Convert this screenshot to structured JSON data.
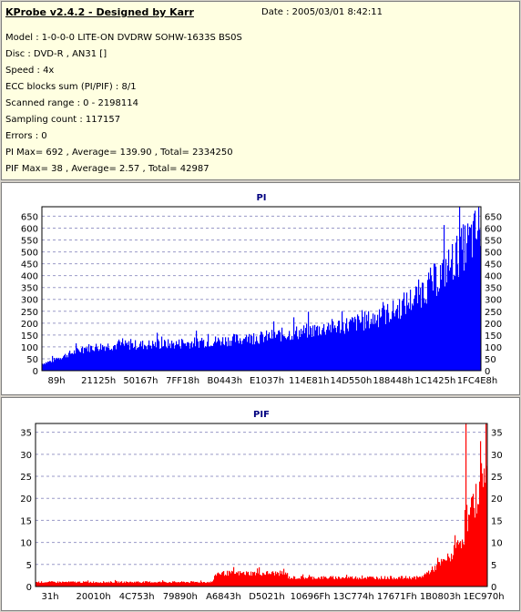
{
  "info": {
    "title": "KProbe v2.4.2 - Designed by Karr",
    "date": "Date : 2005/03/01 8:42:11",
    "lines": [
      "Model : 1-0-0-0 LITE-ON DVDRW SOHW-1633S BS0S",
      "Disc : DVD-R , AN31 []",
      "Speed : 4x",
      "ECC blocks sum (PI/PIF) : 8/1",
      "Scanned range : 0 - 2198114",
      "Sampling count : 117157",
      "Errors : 0",
      "PI Max= 692 , Average= 139.90 , Total= 2334250",
      "PIF Max= 38 , Average= 2.57 , Total= 42987"
    ]
  },
  "colors": {
    "pi": "#0000ff",
    "pif": "#ff0000",
    "title": "#000080",
    "info_bg": "#ffffe1"
  },
  "chart_data": [
    {
      "type": "area",
      "title": "PI",
      "ylim": [
        0,
        690
      ],
      "yticks": [
        0,
        50,
        100,
        150,
        200,
        250,
        300,
        350,
        400,
        450,
        500,
        550,
        600,
        650
      ],
      "xticks": [
        "89h",
        "21125h",
        "50167h",
        "7FF18h",
        "B0443h",
        "E1037h",
        "114E81h",
        "14D550h",
        "188448h",
        "1C1425h",
        "1FC4E8h"
      ],
      "grid": true,
      "profile": [
        [
          0,
          30
        ],
        [
          0.02,
          40
        ],
        [
          0.06,
          70
        ],
        [
          0.1,
          95
        ],
        [
          0.15,
          105
        ],
        [
          0.2,
          108
        ],
        [
          0.3,
          112
        ],
        [
          0.4,
          125
        ],
        [
          0.5,
          140
        ],
        [
          0.6,
          165
        ],
        [
          0.7,
          195
        ],
        [
          0.75,
          215
        ],
        [
          0.8,
          250
        ],
        [
          0.85,
          310
        ],
        [
          0.9,
          390
        ],
        [
          0.93,
          450
        ],
        [
          0.96,
          520
        ],
        [
          0.98,
          560
        ],
        [
          1.0,
          610
        ]
      ],
      "max": 692,
      "average": 139.9
    },
    {
      "type": "area",
      "title": "PIF",
      "ylim": [
        0,
        37
      ],
      "yticks": [
        0,
        5,
        10,
        15,
        20,
        25,
        30,
        35
      ],
      "xticks": [
        "31h",
        "20010h",
        "4C753h",
        "79890h",
        "A6843h",
        "D5021h",
        "10696Fh",
        "13C774h",
        "17671Fh",
        "1B0803h",
        "1EC970h"
      ],
      "grid": true,
      "profile": [
        [
          0,
          1
        ],
        [
          0.39,
          1
        ],
        [
          0.4,
          3
        ],
        [
          0.55,
          3
        ],
        [
          0.56,
          2
        ],
        [
          0.85,
          2
        ],
        [
          0.88,
          4
        ],
        [
          0.92,
          7
        ],
        [
          0.95,
          12
        ],
        [
          0.98,
          22
        ],
        [
          1.0,
          30
        ]
      ],
      "max": 38,
      "average": 2.57
    }
  ]
}
